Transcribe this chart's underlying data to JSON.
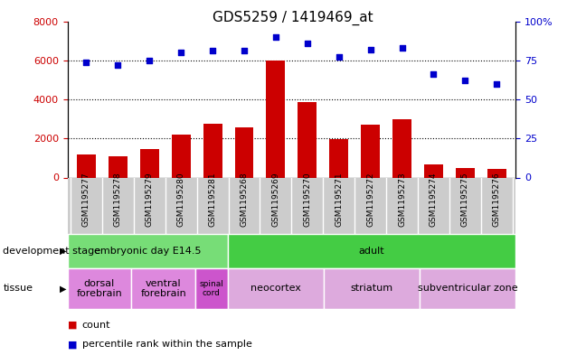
{
  "title": "GDS5259 / 1419469_at",
  "samples": [
    "GSM1195277",
    "GSM1195278",
    "GSM1195279",
    "GSM1195280",
    "GSM1195281",
    "GSM1195268",
    "GSM1195269",
    "GSM1195270",
    "GSM1195271",
    "GSM1195272",
    "GSM1195273",
    "GSM1195274",
    "GSM1195275",
    "GSM1195276"
  ],
  "counts": [
    1200,
    1100,
    1450,
    2200,
    2750,
    2550,
    6000,
    3850,
    1950,
    2700,
    3000,
    650,
    480,
    420
  ],
  "percentiles": [
    74,
    72,
    75,
    80,
    81,
    81,
    90,
    86,
    77,
    82,
    83,
    66,
    62,
    60
  ],
  "ylim_left": [
    0,
    8000
  ],
  "ylim_right": [
    0,
    100
  ],
  "yticks_left": [
    0,
    2000,
    4000,
    6000,
    8000
  ],
  "yticks_right": [
    0,
    25,
    50,
    75,
    100
  ],
  "bar_color": "#cc0000",
  "dot_color": "#0000cc",
  "dev_stage_groups": [
    {
      "label": "embryonic day E14.5",
      "start": 0,
      "end": 5,
      "color": "#77dd77"
    },
    {
      "label": "adult",
      "start": 5,
      "end": 14,
      "color": "#44cc44"
    }
  ],
  "tissue_groups": [
    {
      "label": "dorsal\nforebrain",
      "start": 0,
      "end": 2,
      "color": "#dd88dd"
    },
    {
      "label": "ventral\nforebrain",
      "start": 2,
      "end": 4,
      "color": "#dd88dd"
    },
    {
      "label": "spinal\ncord",
      "start": 4,
      "end": 5,
      "color": "#cc55cc"
    },
    {
      "label": "neocortex",
      "start": 5,
      "end": 8,
      "color": "#ddaadd"
    },
    {
      "label": "striatum",
      "start": 8,
      "end": 11,
      "color": "#ddaadd"
    },
    {
      "label": "subventricular zone",
      "start": 11,
      "end": 14,
      "color": "#ddaadd"
    }
  ],
  "legend_count_label": "count",
  "legend_pct_label": "percentile rank within the sample",
  "dev_stage_label": "development stage",
  "tissue_label": "tissue",
  "gray_bg": "#cccccc",
  "white_bg": "#ffffff"
}
